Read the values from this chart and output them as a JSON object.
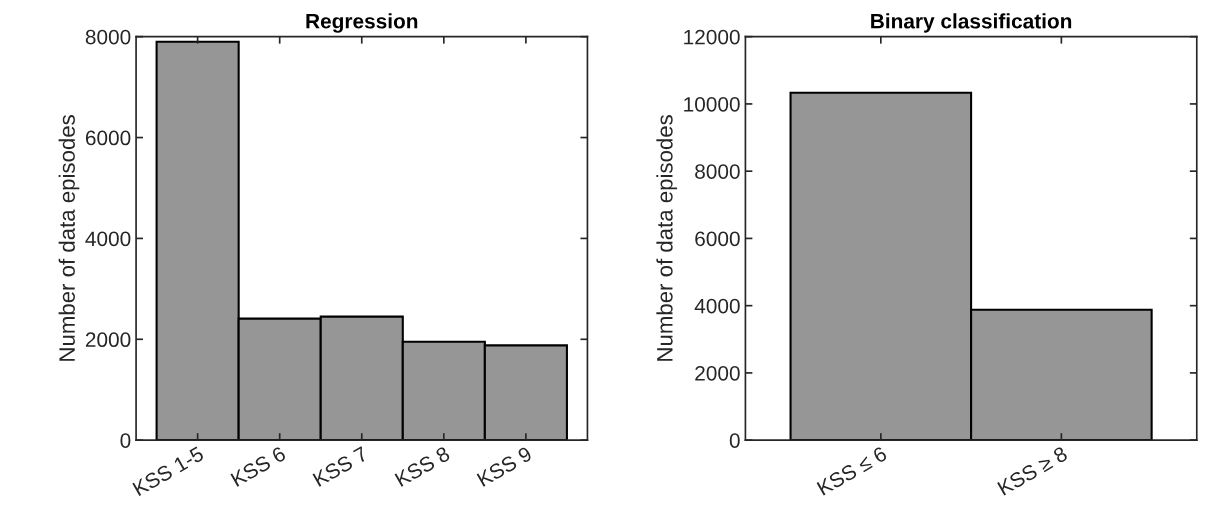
{
  "chart_data": [
    {
      "type": "bar",
      "title": "Regression",
      "ylabel": "Number of data episodes",
      "categories": [
        "KSS 1-5",
        "KSS 6",
        "KSS 7",
        "KSS 8",
        "KSS 9"
      ],
      "values": [
        7900,
        2410,
        2450,
        1950,
        1880
      ],
      "color": "#969696",
      "ylim": [
        0,
        8000
      ],
      "yticks": [
        0,
        2000,
        4000,
        6000,
        8000
      ],
      "grid": false,
      "legend": false
    },
    {
      "type": "bar",
      "title": "Binary classification",
      "ylabel": "Number of data episodes",
      "categories": [
        "KSS ≤ 6",
        "KSS ≥ 8"
      ],
      "values": [
        10330,
        3880
      ],
      "color": "#969696",
      "ylim": [
        0,
        12000
      ],
      "yticks": [
        0,
        2000,
        4000,
        6000,
        8000,
        10000,
        12000
      ],
      "grid": false,
      "legend": false
    }
  ]
}
